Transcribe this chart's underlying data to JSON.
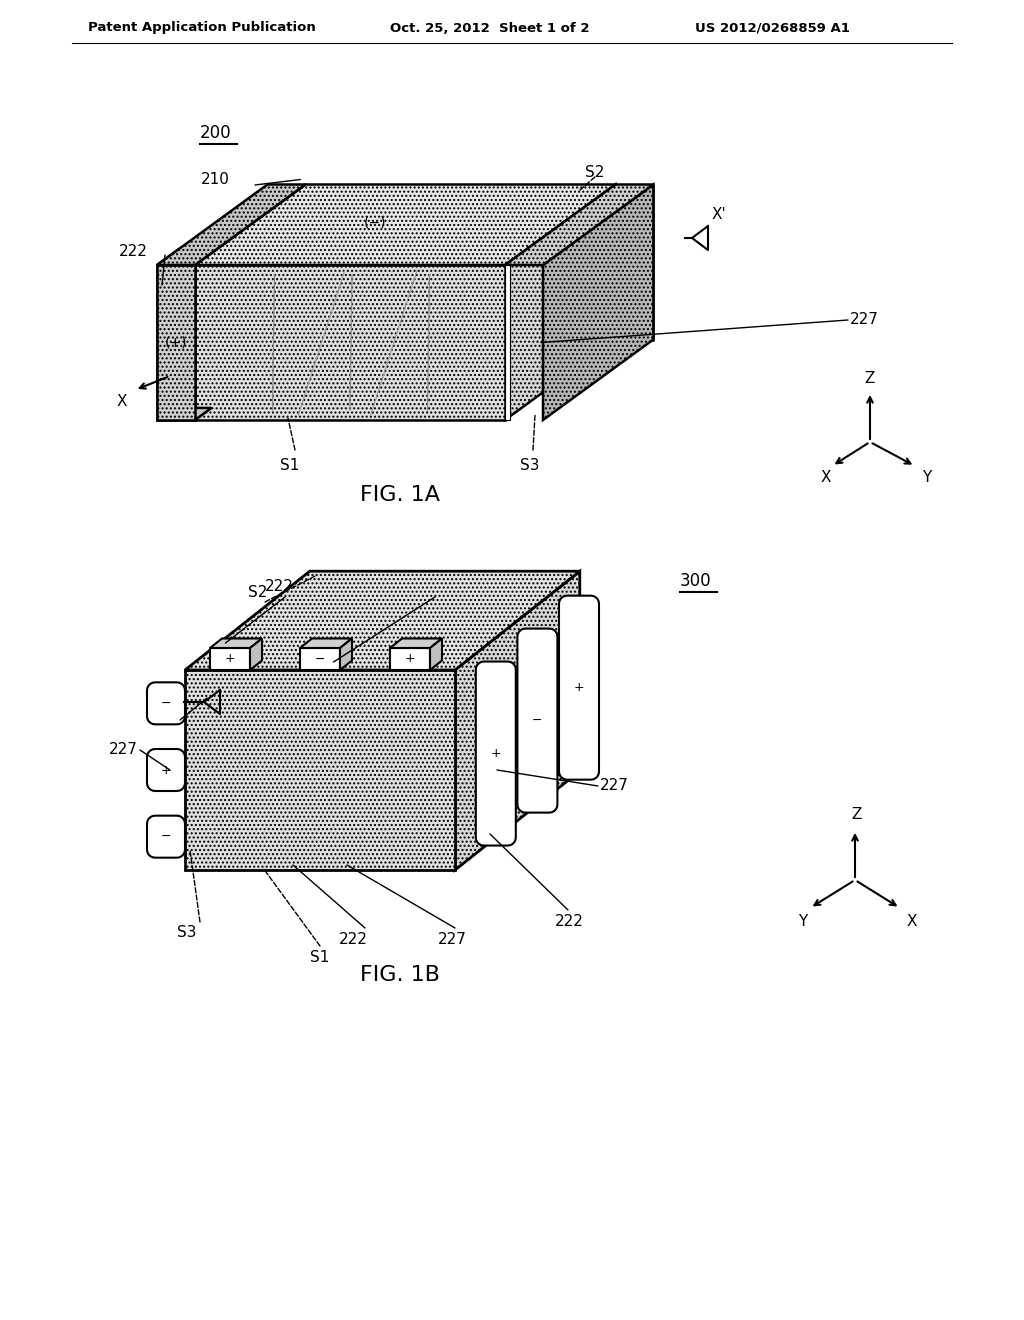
{
  "bg_color": "#ffffff",
  "line_color": "#000000",
  "stipple_color": "#c8c8c8",
  "header_left": "Patent Application Publication",
  "header_center": "Oct. 25, 2012  Sheet 1 of 2",
  "header_right": "US 2012/0268859 A1",
  "fig1_label": "FIG. 1A",
  "fig2_label": "FIG. 1B"
}
